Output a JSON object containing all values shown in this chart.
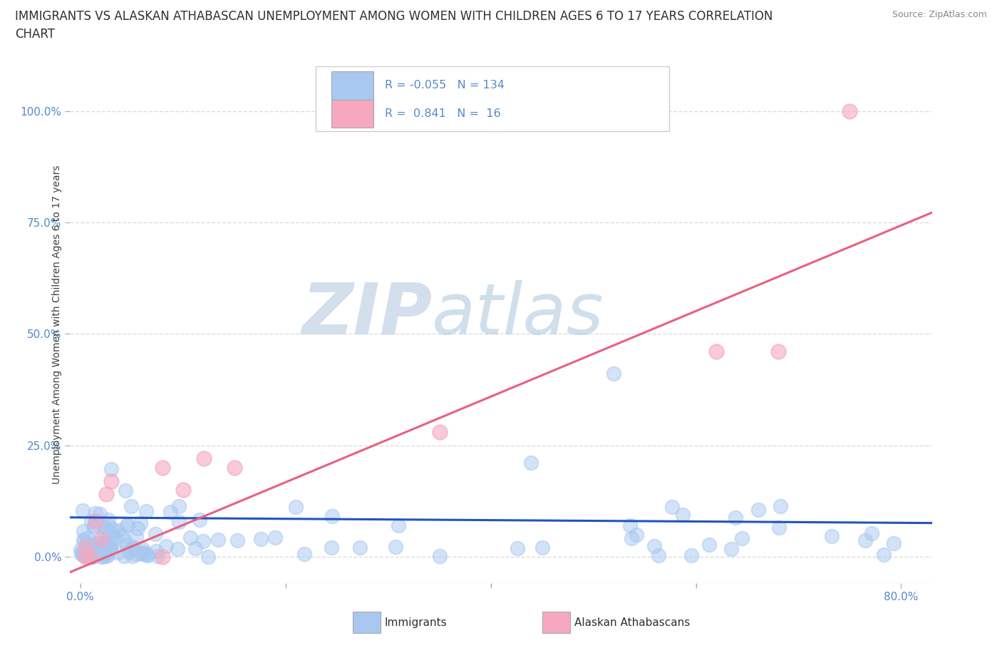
{
  "title_line1": "IMMIGRANTS VS ALASKAN ATHABASCAN UNEMPLOYMENT AMONG WOMEN WITH CHILDREN AGES 6 TO 17 YEARS CORRELATION",
  "title_line2": "CHART",
  "source": "Source: ZipAtlas.com",
  "xlabel_ticks": [
    "0.0%",
    "",
    "",
    "",
    "80.0%"
  ],
  "xlabel_vals": [
    0.0,
    0.2,
    0.4,
    0.6,
    0.8
  ],
  "ylabel_ticks": [
    "0.0%",
    "25.0%",
    "50.0%",
    "75.0%",
    "100.0%"
  ],
  "ylabel_vals": [
    0.0,
    0.25,
    0.5,
    0.75,
    1.0
  ],
  "ylabel": "Unemployment Among Women with Children Ages 6 to 17 years",
  "immigrants_color": "#A8C8F0",
  "athabascan_color": "#F5A8C0",
  "immigrants_line_color": "#2255BB",
  "athabascan_line_color": "#E86080",
  "watermark_zip": "ZIP",
  "watermark_atlas": "atlas",
  "watermark_color": "#CCDDEE",
  "background_color": "#FFFFFF",
  "grid_color": "#DDDDDD",
  "xlim": [
    -0.01,
    0.83
  ],
  "ylim": [
    -0.06,
    1.1
  ],
  "title_fontsize": 12,
  "tick_fontsize": 11,
  "legend_text_color": "#5588CC"
}
